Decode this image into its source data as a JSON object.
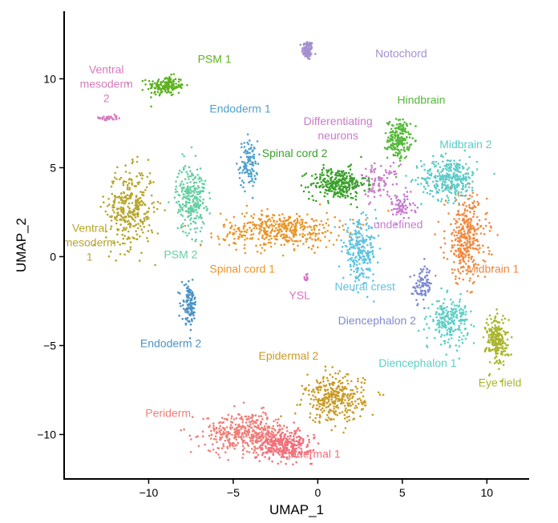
{
  "chart_data": {
    "type": "scatter",
    "title": "",
    "xlabel": "UMAP_1",
    "ylabel": "UMAP_2",
    "xlim": [
      -15,
      12.5
    ],
    "ylim": [
      -12.5,
      13.8
    ],
    "x_ticks": [
      -10,
      -5,
      0,
      5,
      10
    ],
    "y_ticks": [
      -10,
      -5,
      0,
      5,
      10
    ],
    "x_tick_labels": [
      "−10",
      "−5",
      "0",
      "5",
      "10"
    ],
    "y_tick_labels": [
      "−10",
      "−5",
      "0",
      "5",
      "10"
    ],
    "grid": false,
    "legend": "none (clusters labeled directly)",
    "clusters": [
      {
        "id": "notochord",
        "label": "Notochord",
        "color": "#a48fce",
        "label_x": 3.4,
        "label_y": 11.2,
        "align": "start",
        "centroid": [
          -0.6,
          11.6
        ],
        "spread": [
          0.3,
          0.5
        ],
        "count": 90
      },
      {
        "id": "psm1",
        "label": "PSM 1",
        "color": "#5cb21e",
        "label_x": -7.1,
        "label_y": 10.9,
        "align": "start",
        "centroid": [
          -9.0,
          9.6
        ],
        "spread": [
          1.0,
          0.5
        ],
        "count": 160
      },
      {
        "id": "ventral_mesoderm2",
        "label": "Ventral\nmesoderm\n2",
        "color": "#d67bbd",
        "label_x": -12.5,
        "label_y": 10.3,
        "align": "middle",
        "centroid": [
          -12.4,
          7.8
        ],
        "spread": [
          0.5,
          0.15
        ],
        "count": 35
      },
      {
        "id": "endoderm1",
        "label": "Endoderm 1",
        "color": "#4fa1cc",
        "label_x": -6.4,
        "label_y": 8.1,
        "align": "start",
        "centroid": [
          -4.1,
          5.2
        ],
        "spread": [
          0.5,
          1.2
        ],
        "count": 110
      },
      {
        "id": "differentiating_neurons",
        "label": "Differentiating\nneurons",
        "color": "#c77cc7",
        "label_x": 1.2,
        "label_y": 7.4,
        "align": "middle",
        "centroid": [
          3.6,
          4.2
        ],
        "spread": [
          1.1,
          0.9
        ],
        "count": 90
      },
      {
        "id": "hindbrain",
        "label": "Hindbrain",
        "color": "#55b83a",
        "label_x": 4.7,
        "label_y": 8.6,
        "align": "start",
        "centroid": [
          4.8,
          6.6
        ],
        "spread": [
          0.6,
          1.0
        ],
        "count": 190
      },
      {
        "id": "spinal_cord2",
        "label": "Spinal cord 2",
        "color": "#3aa12b",
        "label_x": -3.3,
        "label_y": 5.6,
        "align": "start",
        "centroid": [
          1.2,
          4.1
        ],
        "spread": [
          1.5,
          0.8
        ],
        "count": 300
      },
      {
        "id": "midbrain2",
        "label": "Midbrain 2",
        "color": "#5ccbc8",
        "label_x": 7.2,
        "label_y": 6.1,
        "align": "start",
        "centroid": [
          7.8,
          4.4
        ],
        "spread": [
          1.5,
          1.1
        ],
        "count": 320
      },
      {
        "id": "ventral_mesoderm1",
        "label": "Ventral\nmesoderm\n1",
        "color": "#b7a62c",
        "label_x": -13.5,
        "label_y": 1.4,
        "align": "middle",
        "centroid": [
          -11.1,
          2.7
        ],
        "spread": [
          1.3,
          2.0
        ],
        "count": 340
      },
      {
        "id": "psm2",
        "label": "PSM 2",
        "color": "#66cfa2",
        "label_x": -9.1,
        "label_y": -0.1,
        "align": "start",
        "centroid": [
          -7.5,
          3.3
        ],
        "spread": [
          0.8,
          1.8
        ],
        "count": 260
      },
      {
        "id": "spinal_cord1",
        "label": "Spinal cord 1",
        "color": "#e9962a",
        "label_x": -6.4,
        "label_y": -0.9,
        "align": "start",
        "centroid": [
          -2.2,
          1.5
        ],
        "spread": [
          3.2,
          0.9
        ],
        "count": 420
      },
      {
        "id": "undefined",
        "label": "undefined",
        "color": "#c77cd0",
        "label_x": 3.3,
        "label_y": 1.6,
        "align": "start",
        "centroid": [
          4.9,
          2.8
        ],
        "spread": [
          0.8,
          0.7
        ],
        "count": 70
      },
      {
        "id": "midbrain1",
        "label": "Midbrain 1",
        "color": "#f0883f",
        "label_x": 8.8,
        "label_y": -0.9,
        "align": "start",
        "centroid": [
          8.8,
          1.0
        ],
        "spread": [
          1.1,
          2.2
        ],
        "count": 340
      },
      {
        "id": "ysl",
        "label": "YSL",
        "color": "#d673c8",
        "label_x": -1.7,
        "label_y": -2.4,
        "align": "start",
        "centroid": [
          -0.7,
          -1.2
        ],
        "spread": [
          0.2,
          0.2
        ],
        "count": 12
      },
      {
        "id": "neural_crest",
        "label": "Neural crest",
        "color": "#5fc3e0",
        "label_x": 1.0,
        "label_y": -1.9,
        "align": "start",
        "centroid": [
          2.5,
          0.3
        ],
        "spread": [
          0.9,
          1.5
        ],
        "count": 250
      },
      {
        "id": "diencephalon2",
        "label": "Diencephalon 2",
        "color": "#7f8ad0",
        "label_x": 1.2,
        "label_y": -3.8,
        "align": "start",
        "centroid": [
          6.2,
          -1.6
        ],
        "spread": [
          0.5,
          0.9
        ],
        "count": 90
      },
      {
        "id": "endoderm2",
        "label": "Endoderm 2",
        "color": "#4b93c5",
        "label_x": -10.5,
        "label_y": -5.1,
        "align": "start",
        "centroid": [
          -7.6,
          -2.7
        ],
        "spread": [
          0.4,
          1.0
        ],
        "count": 120
      },
      {
        "id": "diencephalon1",
        "label": "Diencephalon 1",
        "color": "#5ccfc6",
        "label_x": 3.6,
        "label_y": -6.2,
        "align": "start",
        "centroid": [
          7.8,
          -3.6
        ],
        "spread": [
          1.0,
          1.1
        ],
        "count": 220
      },
      {
        "id": "eye_field",
        "label": "Eye field",
        "color": "#a9b52b",
        "label_x": 9.5,
        "label_y": -7.3,
        "align": "start",
        "centroid": [
          10.6,
          -4.7
        ],
        "spread": [
          0.6,
          1.3
        ],
        "count": 210
      },
      {
        "id": "epidermal2",
        "label": "Epidermal 2",
        "color": "#c99b27",
        "label_x": -3.5,
        "label_y": -5.8,
        "align": "start",
        "centroid": [
          1.0,
          -8.0
        ],
        "spread": [
          1.6,
          1.2
        ],
        "count": 340
      },
      {
        "id": "periderm",
        "label": "Periderm",
        "color": "#ef7f78",
        "label_x": -10.2,
        "label_y": -9.0,
        "align": "start",
        "centroid": [
          -4.2,
          -9.9
        ],
        "spread": [
          2.3,
          1.0
        ],
        "count": 420
      },
      {
        "id": "epidermal1",
        "label": "Epidermal 1",
        "color": "#f36f7a",
        "label_x": -2.2,
        "label_y": -11.3,
        "align": "start",
        "centroid": [
          -2.0,
          -10.6
        ],
        "spread": [
          1.5,
          0.7
        ],
        "count": 300
      }
    ]
  }
}
